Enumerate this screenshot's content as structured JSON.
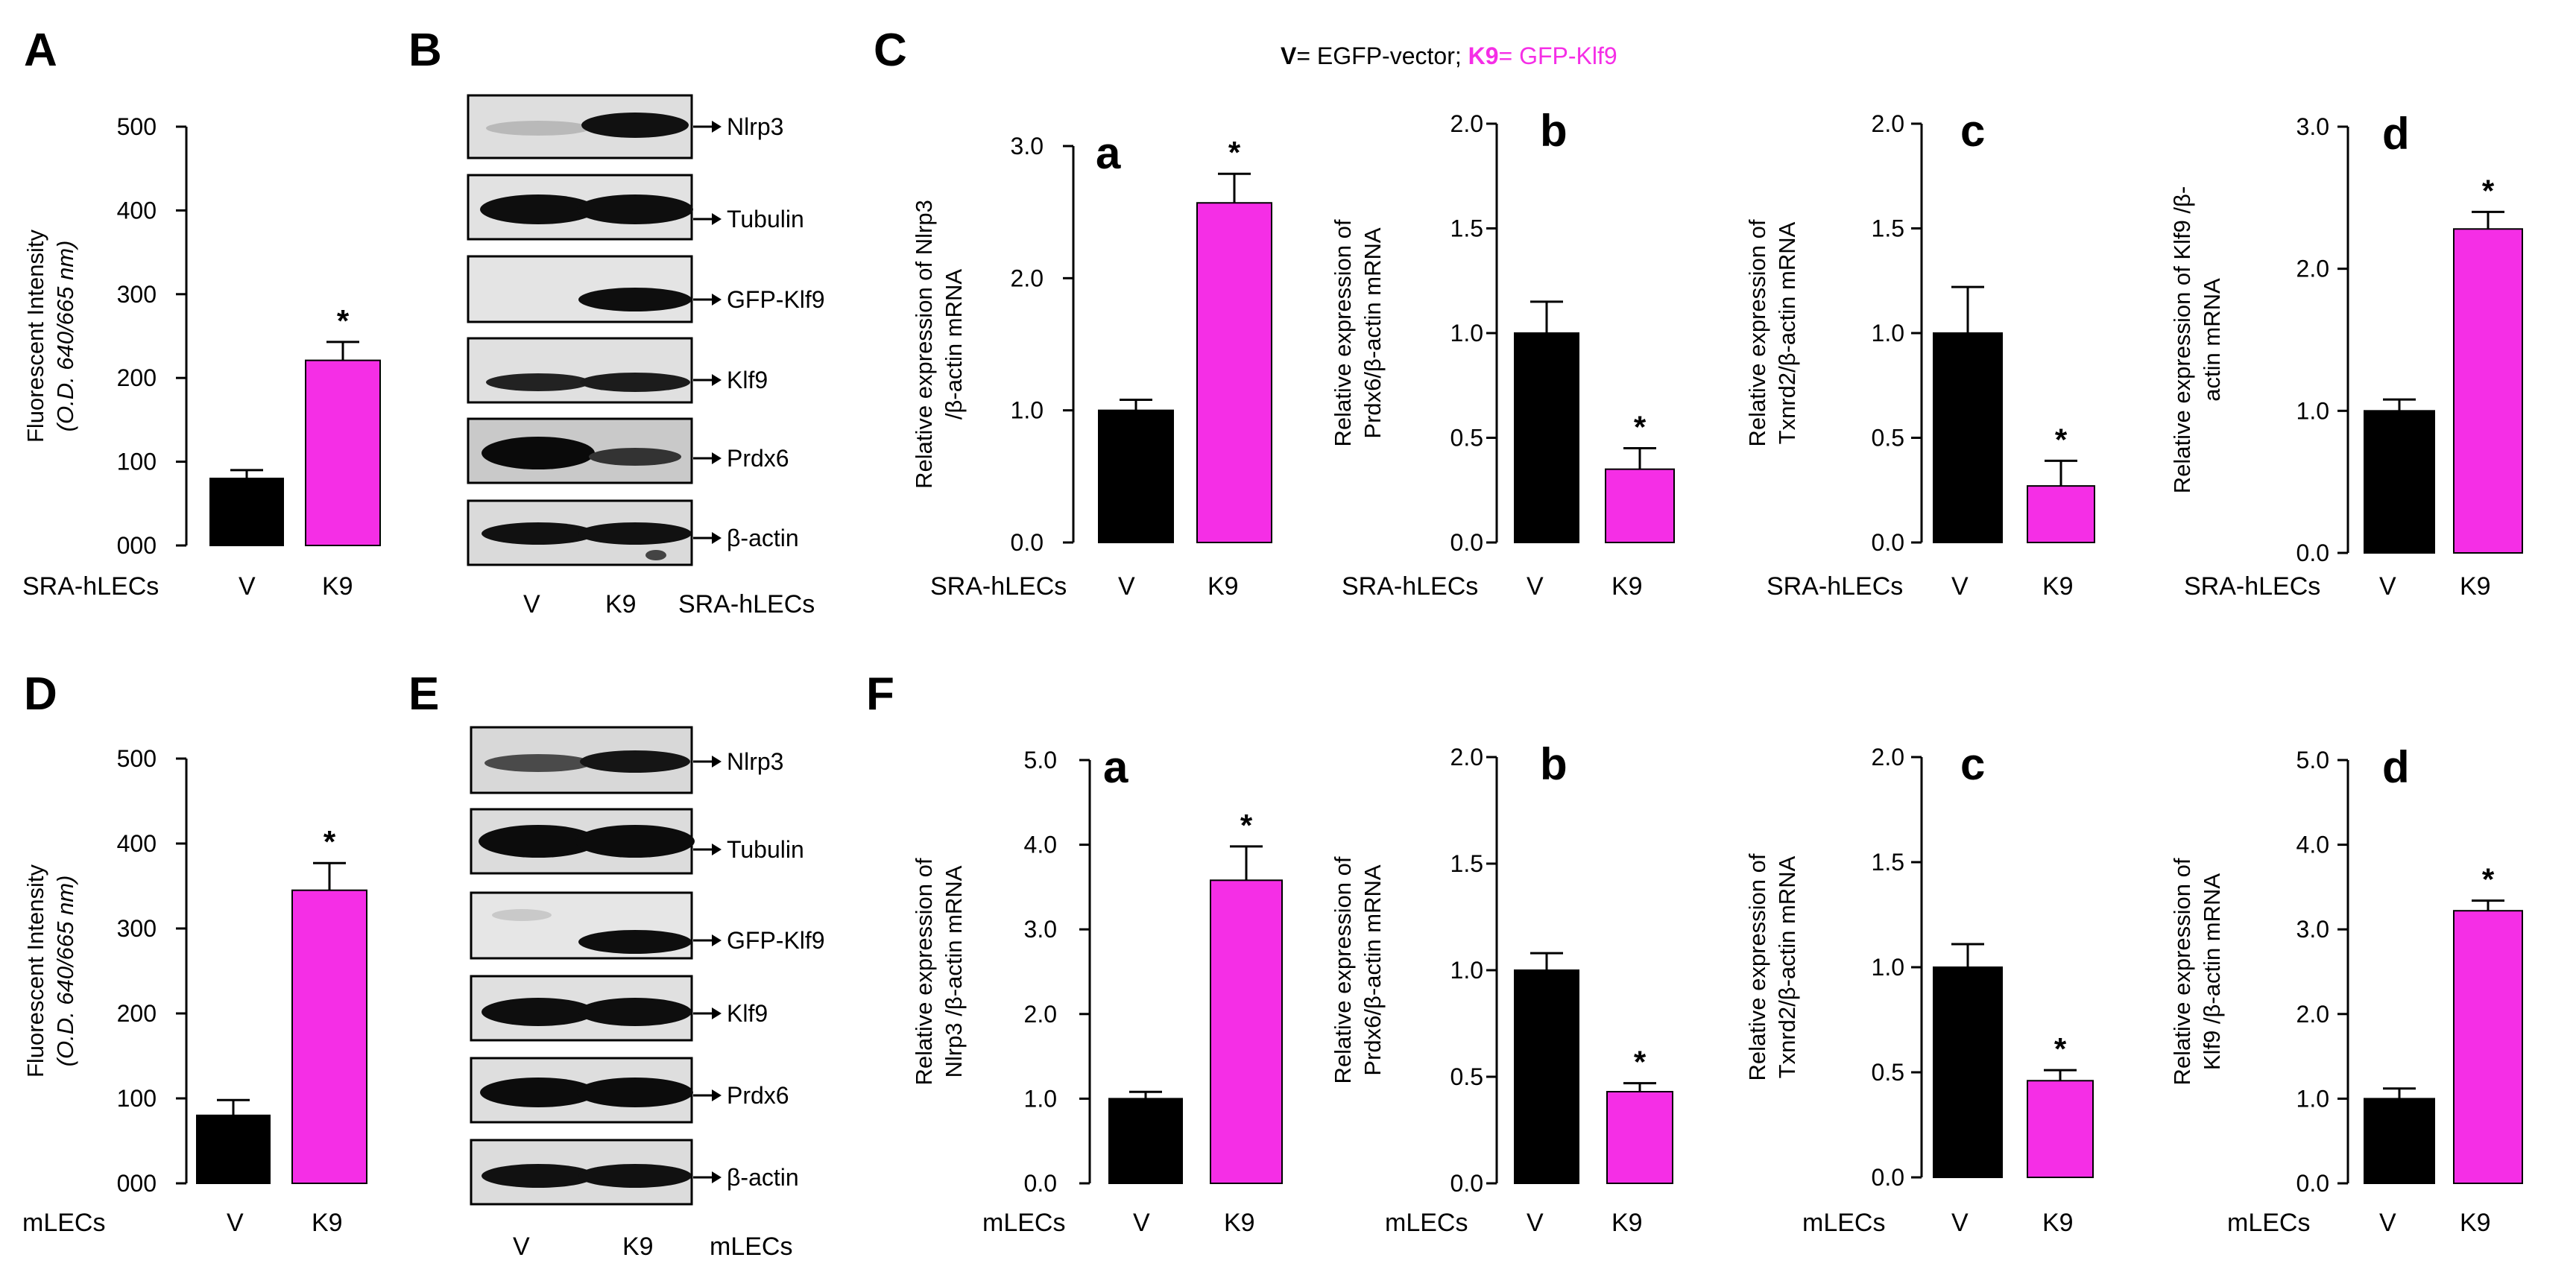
{
  "figure": {
    "panels": {
      "A": "A",
      "B": "B",
      "C": "C",
      "D": "D",
      "E": "E",
      "F": "F"
    },
    "legend": {
      "v_key": "V",
      "v_text": "= EGFP-vector;",
      "k9_key": "K9",
      "k9_text": "= GFP-Klf9"
    },
    "blot_B": {
      "bands": [
        {
          "label": "Nlrp3"
        },
        {
          "label": "Tubulin"
        },
        {
          "label": "GFP-Klf9"
        },
        {
          "label": "Klf9"
        },
        {
          "label": "Prdx6"
        },
        {
          "label": "β-actin"
        }
      ],
      "lanes": [
        "V",
        "K9"
      ],
      "cell_label": "SRA-hLECs"
    },
    "blot_E": {
      "bands": [
        {
          "label": "Nlrp3"
        },
        {
          "label": "Tubulin"
        },
        {
          "label": "GFP-Klf9"
        },
        {
          "label": "Klf9"
        },
        {
          "label": "Prdx6"
        },
        {
          "label": "β-actin"
        }
      ],
      "lanes": [
        "V",
        "K9"
      ],
      "cell_label": "mLECs"
    }
  },
  "colors": {
    "V": "#000000",
    "K9": "#f52ee6",
    "legend_V": "#000000",
    "legend_K9": "#f52ee6"
  },
  "chart_data": [
    {
      "id": "A",
      "type": "bar",
      "categories": [
        "V",
        "K9"
      ],
      "values": [
        80,
        221
      ],
      "errors": [
        10,
        22
      ],
      "sig": [
        false,
        true
      ],
      "star": "*",
      "ylabel": "Fluorescent Intensity",
      "ylabel2": "(O.D. 640/665 nm)",
      "ylim": [
        0,
        500
      ],
      "ticks": [
        "000",
        "100",
        "200",
        "300",
        "400",
        "500"
      ],
      "cell_label": "SRA-hLECs",
      "letter": ""
    },
    {
      "id": "Ca",
      "type": "bar",
      "categories": [
        "V",
        "K9"
      ],
      "values": [
        1.0,
        2.57
      ],
      "errors": [
        0.08,
        0.22
      ],
      "sig": [
        false,
        true
      ],
      "star": "*",
      "ylabel": "Relative  expression of Nlrp3",
      "ylabel2": "/β-actin mRNA",
      "ylim": [
        0,
        3
      ],
      "ticks": [
        "0.0",
        "1.0",
        "2.0",
        "3.0"
      ],
      "cell_label": "SRA-hLECs",
      "letter": "a"
    },
    {
      "id": "Cb",
      "type": "bar",
      "categories": [
        "V",
        "K9"
      ],
      "values": [
        1.0,
        0.35
      ],
      "errors": [
        0.15,
        0.1
      ],
      "sig": [
        false,
        true
      ],
      "star": "*",
      "ylabel": "Relative  expression of",
      "ylabel2": "Prdx6/β-actin mRNA",
      "ylim": [
        0,
        2
      ],
      "ticks": [
        "0.0",
        "0.5",
        "1.0",
        "1.5",
        "2.0"
      ],
      "cell_label": "SRA-hLECs",
      "letter": "b"
    },
    {
      "id": "Cc",
      "type": "bar",
      "categories": [
        "V",
        "K9"
      ],
      "values": [
        1.0,
        0.27
      ],
      "errors": [
        0.22,
        0.12
      ],
      "sig": [
        false,
        true
      ],
      "star": "*",
      "ylabel": "Relative  expression of",
      "ylabel2": "Txnrd2/β-actin mRNA",
      "ylim": [
        0,
        2
      ],
      "ticks": [
        "0.0",
        "0.5",
        "1.0",
        "1.5",
        "2.0"
      ],
      "cell_label": "SRA-hLECs",
      "letter": "c"
    },
    {
      "id": "Cd",
      "type": "bar",
      "categories": [
        "V",
        "K9"
      ],
      "values": [
        1.0,
        2.28
      ],
      "errors": [
        0.08,
        0.12
      ],
      "sig": [
        false,
        true
      ],
      "star": "*",
      "ylabel": "Relative  expression of Klf9 /β-",
      "ylabel2": "actin mRNA",
      "ylim": [
        0,
        3
      ],
      "ticks": [
        "0.0",
        "1.0",
        "2.0",
        "3.0"
      ],
      "cell_label": "SRA-hLECs",
      "letter": "d"
    },
    {
      "id": "D",
      "type": "bar",
      "categories": [
        "V",
        "K9"
      ],
      "values": [
        80,
        345
      ],
      "errors": [
        18,
        32
      ],
      "sig": [
        false,
        true
      ],
      "star": "*",
      "ylabel": "Fluorescent Intensity",
      "ylabel2": "(O.D. 640/665 nm)",
      "ylim": [
        0,
        500
      ],
      "ticks": [
        "000",
        "100",
        "200",
        "300",
        "400",
        "500"
      ],
      "cell_label": "mLECs",
      "letter": ""
    },
    {
      "id": "Fa",
      "type": "bar",
      "categories": [
        "V",
        "K9"
      ],
      "values": [
        1.0,
        3.58
      ],
      "errors": [
        0.08,
        0.4
      ],
      "sig": [
        false,
        true
      ],
      "star": "*",
      "ylabel": "Relative  expression of",
      "ylabel2": "Nlrp3 /β-actin mRNA",
      "ylim": [
        0,
        5
      ],
      "ticks": [
        "0.0",
        "1.0",
        "2.0",
        "3.0",
        "4.0",
        "5.0"
      ],
      "cell_label": "mLECs",
      "letter": "a"
    },
    {
      "id": "Fb",
      "type": "bar",
      "categories": [
        "V",
        "K9"
      ],
      "values": [
        1.0,
        0.43
      ],
      "errors": [
        0.08,
        0.04
      ],
      "sig": [
        false,
        true
      ],
      "star": "*",
      "ylabel": "Relative  expression of",
      "ylabel2": "Prdx6/β-actin mRNA",
      "ylim": [
        0,
        2
      ],
      "ticks": [
        "0.0",
        "0.5",
        "1.0",
        "1.5",
        "2.0"
      ],
      "cell_label": "mLECs",
      "letter": "b"
    },
    {
      "id": "Fc",
      "type": "bar",
      "categories": [
        "V",
        "K9"
      ],
      "values": [
        1.0,
        0.46
      ],
      "errors": [
        0.11,
        0.05
      ],
      "sig": [
        false,
        true
      ],
      "star": "*",
      "ylabel": "Relative  expression of",
      "ylabel2": "Txnrd2/β-actin mRNA",
      "ylim": [
        0,
        2
      ],
      "ticks": [
        "0.0",
        "0.5",
        "1.0",
        "1.5",
        "2.0"
      ],
      "cell_label": "mLECs",
      "letter": "c"
    },
    {
      "id": "Fd",
      "type": "bar",
      "categories": [
        "V",
        "K9"
      ],
      "values": [
        1.0,
        3.22
      ],
      "errors": [
        0.12,
        0.12
      ],
      "sig": [
        false,
        true
      ],
      "star": "*",
      "ylabel": "Relative  expression of",
      "ylabel2": "Klf9 /β-actin mRNA",
      "ylim": [
        0,
        5
      ],
      "ticks": [
        "0.0",
        "1.0",
        "2.0",
        "3.0",
        "4.0",
        "5.0"
      ],
      "cell_label": "mLECs",
      "letter": "d"
    }
  ]
}
